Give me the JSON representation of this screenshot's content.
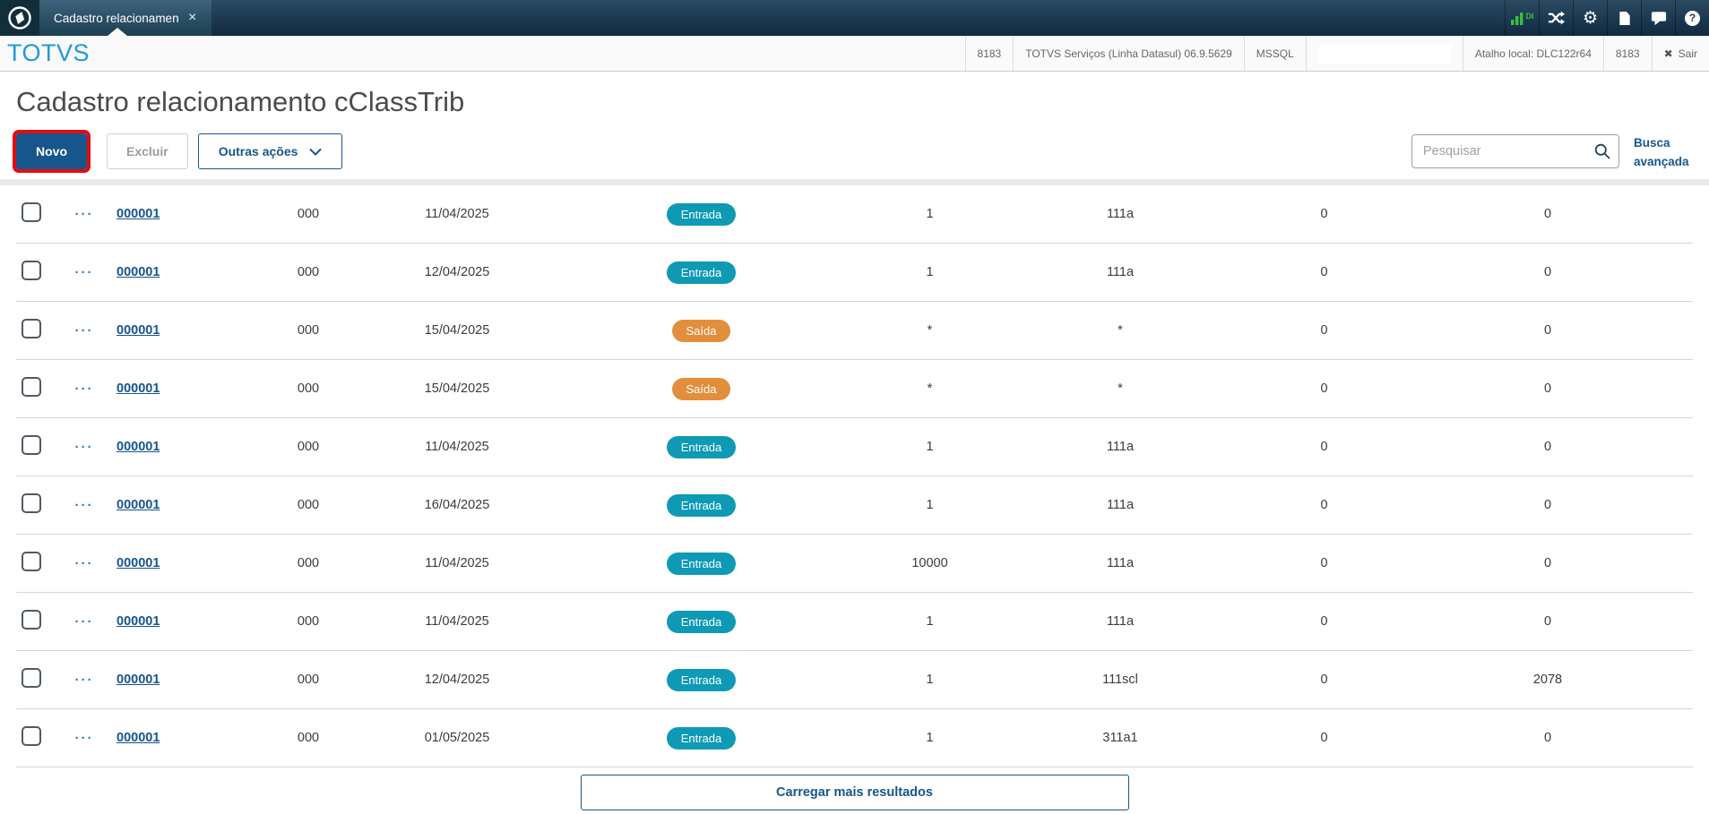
{
  "topbar": {
    "tab_title": "Cadastro relacionamen",
    "tab_close": "×",
    "icons": [
      {
        "name": "di-monitor-icon",
        "label": "DI"
      },
      {
        "name": "shuffle-icon"
      },
      {
        "name": "settings-gear-icon"
      },
      {
        "name": "document-icon"
      },
      {
        "name": "chat-icon"
      },
      {
        "name": "help-icon",
        "glyph": "?"
      }
    ]
  },
  "header": {
    "brand": "TOTVS",
    "segments": [
      "8183",
      "TOTVS Serviços (Linha Datasul) 06.9.5629",
      "MSSQL"
    ],
    "segments_after": [
      "Atalho local: DLC122r64",
      "8183"
    ],
    "logout_icon": "✖",
    "logout_label": "Sair"
  },
  "page": {
    "title": "Cadastro relacionamento cClassTrib",
    "actions": {
      "new_label": "Novo",
      "delete_label": "Excluir",
      "more_label": "Outras ações"
    },
    "search": {
      "placeholder": "Pesquisar",
      "value": ""
    },
    "advanced_search_label": "Busca avançada",
    "load_more_label": "Carregar mais resultados"
  },
  "colors": {
    "accent_blue": "#16568c",
    "entrada_badge": "#0e9ab5",
    "saida_badge": "#e28e3c",
    "annotation_red": "#e30b12",
    "di_green": "#36c23c"
  },
  "table": {
    "rows": [
      {
        "id": "000001",
        "code": "000",
        "date": "11/04/2025",
        "type": "Entrada",
        "v1": "1",
        "v2": "111a",
        "v3": "0",
        "v4": "0"
      },
      {
        "id": "000001",
        "code": "000",
        "date": "12/04/2025",
        "type": "Entrada",
        "v1": "1",
        "v2": "111a",
        "v3": "0",
        "v4": "0"
      },
      {
        "id": "000001",
        "code": "000",
        "date": "15/04/2025",
        "type": "Saída",
        "v1": "*",
        "v2": "*",
        "v3": "0",
        "v4": "0"
      },
      {
        "id": "000001",
        "code": "000",
        "date": "15/04/2025",
        "type": "Saída",
        "v1": "*",
        "v2": "*",
        "v3": "0",
        "v4": "0"
      },
      {
        "id": "000001",
        "code": "000",
        "date": "11/04/2025",
        "type": "Entrada",
        "v1": "1",
        "v2": "111a",
        "v3": "0",
        "v4": "0"
      },
      {
        "id": "000001",
        "code": "000",
        "date": "16/04/2025",
        "type": "Entrada",
        "v1": "1",
        "v2": "111a",
        "v3": "0",
        "v4": "0"
      },
      {
        "id": "000001",
        "code": "000",
        "date": "11/04/2025",
        "type": "Entrada",
        "v1": "10000",
        "v2": "111a",
        "v3": "0",
        "v4": "0"
      },
      {
        "id": "000001",
        "code": "000",
        "date": "11/04/2025",
        "type": "Entrada",
        "v1": "1",
        "v2": "111a",
        "v3": "0",
        "v4": "0"
      },
      {
        "id": "000001",
        "code": "000",
        "date": "12/04/2025",
        "type": "Entrada",
        "v1": "1",
        "v2": "111scl",
        "v3": "0",
        "v4": "2078"
      },
      {
        "id": "000001",
        "code": "000",
        "date": "01/05/2025",
        "type": "Entrada",
        "v1": "1",
        "v2": "311a1",
        "v3": "0",
        "v4": "0"
      }
    ]
  }
}
